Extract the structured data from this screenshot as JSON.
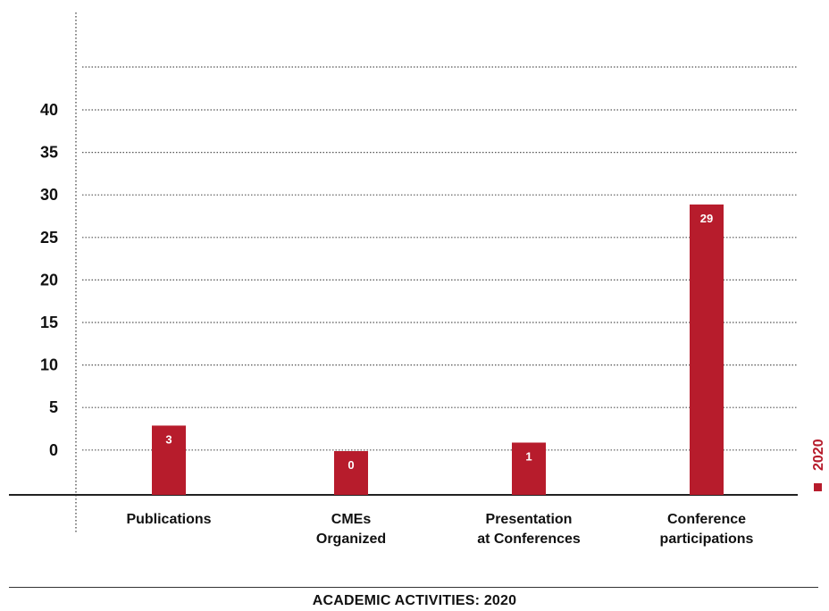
{
  "chart_data": {
    "type": "bar",
    "title": "ACADEMIC ACTIVITIES: 2020",
    "categories": [
      [
        "Publications"
      ],
      [
        "CMEs",
        "Organized"
      ],
      [
        "Presentation",
        "at Conferences"
      ],
      [
        "Conference",
        "participations"
      ]
    ],
    "series": [
      {
        "name": "2020",
        "values": [
          3,
          0,
          1,
          29
        ],
        "color": "#b71c2c"
      }
    ],
    "y_ticks": [
      "40",
      "35",
      "30",
      "25",
      "20",
      "15",
      "10",
      "5",
      "0"
    ],
    "grid": "dotted horizontal",
    "legend": "right, vertical"
  }
}
